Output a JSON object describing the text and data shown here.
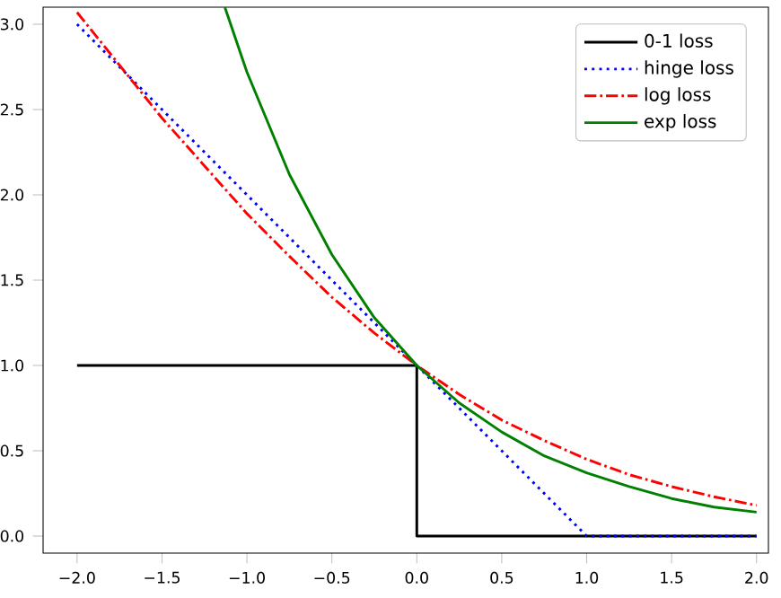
{
  "chart_data": {
    "type": "line",
    "xlim": [
      -2.2,
      2.07
    ],
    "ylim": [
      -0.1,
      3.1
    ],
    "xticks": [
      {
        "value": -2,
        "label": "−2.0"
      },
      {
        "value": -1.5,
        "label": "−1.5"
      },
      {
        "value": -1,
        "label": "−1.0"
      },
      {
        "value": -0.5,
        "label": "−0.5"
      },
      {
        "value": 0,
        "label": "0.0"
      },
      {
        "value": 0.5,
        "label": "0.5"
      },
      {
        "value": 1,
        "label": "1.0"
      },
      {
        "value": 1.5,
        "label": "1.5"
      },
      {
        "value": 2,
        "label": "2.0"
      }
    ],
    "yticks": [
      {
        "value": 0,
        "label": "0.0"
      },
      {
        "value": 0.5,
        "label": "0.5"
      },
      {
        "value": 1,
        "label": "1.0"
      },
      {
        "value": 1.5,
        "label": "1.5"
      },
      {
        "value": 2,
        "label": "2.0"
      },
      {
        "value": 2.5,
        "label": "2.5"
      },
      {
        "value": 3,
        "label": "3.0"
      }
    ],
    "legend": "top right",
    "grid": false,
    "marker": "none",
    "series": [
      {
        "name": "0-1 loss",
        "color": "#000000",
        "line_style": "solid",
        "x": [
          -2,
          0,
          0,
          2
        ],
        "values": [
          1,
          1,
          0,
          0
        ]
      },
      {
        "name": "hinge loss",
        "color": "#0000ff",
        "line_style": "dotted",
        "x": [
          -2,
          1,
          2
        ],
        "values": [
          3,
          0,
          0
        ]
      },
      {
        "name": "log loss",
        "color": "#ff0000",
        "line_style": "dashdot",
        "x": [
          -2,
          -1.75,
          -1.5,
          -1.25,
          -1,
          -0.75,
          -0.5,
          -0.25,
          0,
          0.25,
          0.5,
          0.75,
          1,
          1.25,
          1.5,
          1.75,
          2
        ],
        "values": [
          3.07,
          2.76,
          2.45,
          2.17,
          1.89,
          1.64,
          1.4,
          1.19,
          1,
          0.83,
          0.68,
          0.56,
          0.45,
          0.36,
          0.29,
          0.23,
          0.18
        ]
      },
      {
        "name": "exp loss",
        "color": "#008000",
        "line_style": "solid",
        "x": [
          -1.13,
          -1,
          -0.75,
          -0.5,
          -0.25,
          0,
          0.25,
          0.5,
          0.75,
          1,
          1.25,
          1.5,
          1.75,
          2
        ],
        "values": [
          3.1,
          2.72,
          2.12,
          1.65,
          1.28,
          1,
          0.78,
          0.61,
          0.47,
          0.37,
          0.29,
          0.22,
          0.17,
          0.14
        ]
      }
    ]
  }
}
